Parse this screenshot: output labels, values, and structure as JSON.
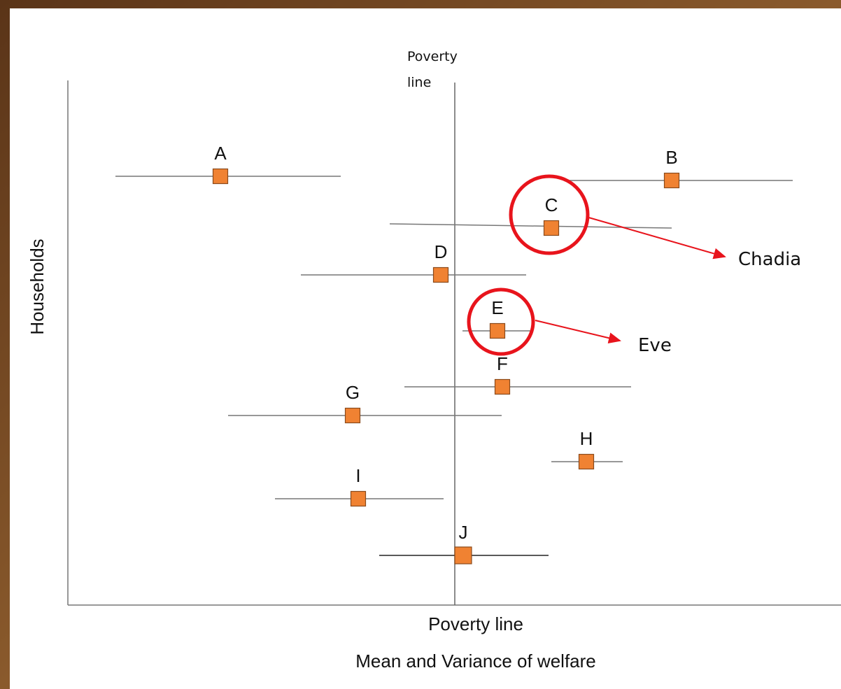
{
  "diagram": {
    "poverty_line_label": [
      "Poverty",
      "line"
    ],
    "y_axis_label": "Households",
    "x_axis_label": [
      "Poverty line",
      "Mean and Variance of welfare"
    ],
    "households": [
      "A",
      "B",
      "C",
      "D",
      "E",
      "F",
      "G",
      "H",
      "I",
      "J"
    ],
    "callouts": [
      {
        "label": "Chadia"
      },
      {
        "label": "Eve"
      }
    ]
  }
}
